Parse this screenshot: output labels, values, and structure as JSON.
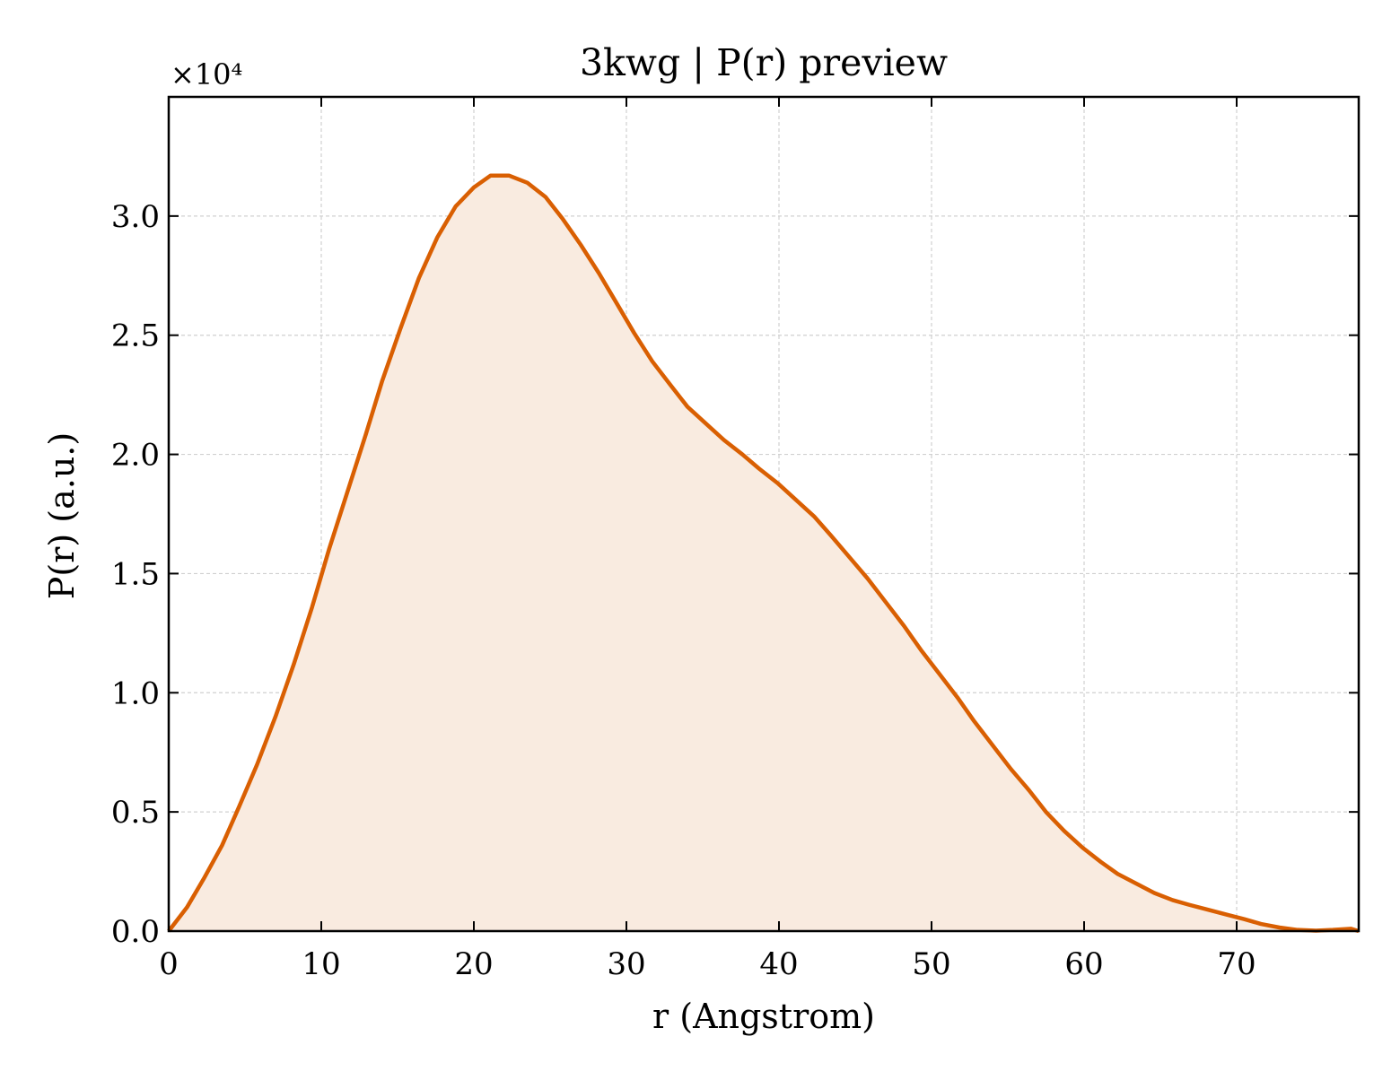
{
  "chart_data": {
    "type": "area",
    "title": "3kwg | P(r) preview",
    "xlabel": "r (Angstrom)",
    "ylabel": "P(r) (a.u.)",
    "y_multiplier": "×10⁴",
    "xlim": [
      0,
      78
    ],
    "ylim": [
      0,
      3.5
    ],
    "x_ticks": [
      0,
      10,
      20,
      30,
      40,
      50,
      60,
      70
    ],
    "y_ticks": [
      0.0,
      0.5,
      1.0,
      1.5,
      2.0,
      2.5,
      3.0
    ],
    "x_tick_labels": [
      "0",
      "10",
      "20",
      "30",
      "40",
      "50",
      "60",
      "70"
    ],
    "y_tick_labels": [
      "0.0",
      "0.5",
      "1.0",
      "1.5",
      "2.0",
      "2.5",
      "3.0"
    ],
    "grid": true,
    "line_color": "#d95f02",
    "fill_color": "#f9ebe0",
    "series": [
      {
        "x": [
          0,
          1.2,
          2.3,
          3.5,
          4.6,
          5.8,
          7.0,
          8.2,
          9.4,
          10.5,
          11.7,
          12.9,
          14.0,
          15.2,
          16.4,
          17.6,
          18.8,
          20.0,
          21.1,
          22.3,
          23.5,
          24.7,
          25.8,
          27.0,
          28.2,
          29.4,
          30.5,
          31.7,
          32.9,
          34.0,
          35.2,
          36.4,
          37.6,
          38.7,
          39.9,
          41.1,
          42.3,
          43.4,
          44.6,
          45.8,
          47.0,
          48.2,
          49.3,
          50.5,
          51.7,
          52.8,
          54.0,
          55.2,
          56.4,
          57.5,
          58.7,
          59.9,
          61.1,
          62.2,
          63.4,
          64.6,
          65.8,
          66.9,
          68.1,
          69.3,
          70.5,
          71.6,
          72.8,
          74.0,
          75.2,
          76.3,
          77.5,
          78.0
        ],
        "y": [
          0.0,
          0.1,
          0.22,
          0.36,
          0.52,
          0.7,
          0.9,
          1.12,
          1.36,
          1.6,
          1.84,
          2.08,
          2.31,
          2.53,
          2.74,
          2.91,
          3.04,
          3.12,
          3.17,
          3.17,
          3.14,
          3.08,
          2.99,
          2.88,
          2.76,
          2.63,
          2.51,
          2.39,
          2.29,
          2.2,
          2.13,
          2.06,
          2.0,
          1.94,
          1.88,
          1.81,
          1.74,
          1.66,
          1.57,
          1.48,
          1.38,
          1.28,
          1.18,
          1.08,
          0.98,
          0.88,
          0.78,
          0.68,
          0.59,
          0.5,
          0.42,
          0.35,
          0.29,
          0.24,
          0.2,
          0.16,
          0.13,
          0.11,
          0.09,
          0.07,
          0.05,
          0.03,
          0.015,
          0.005,
          0.002,
          0.005,
          0.01,
          0.0
        ]
      }
    ]
  }
}
